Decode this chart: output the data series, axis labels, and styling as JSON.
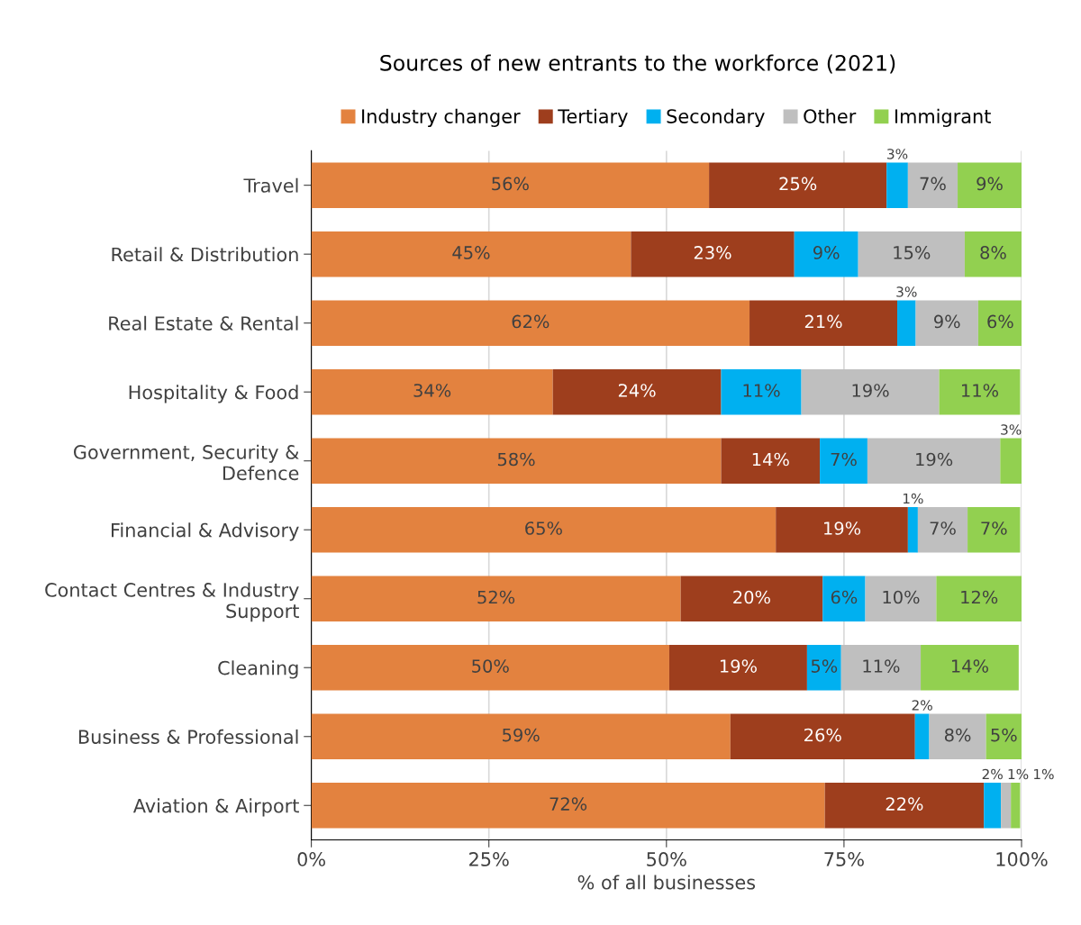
{
  "chart_data": {
    "type": "bar",
    "orientation": "horizontal",
    "stacked": true,
    "title": "Sources of new entrants to the workforce (2021)",
    "xlabel": "% of all businesses",
    "categories": [
      "Travel",
      "Retail & Distribution",
      "Real Estate & Rental",
      "Hospitality & Food",
      "Government, Security &\nDefence",
      "Financial & Advisory",
      "Contact Centres & Industry\nSupport",
      "Cleaning",
      "Business & Professional",
      "Aviation & Airport"
    ],
    "series": [
      {
        "name": "Industry changer",
        "color": "#e3823f",
        "values": [
          56,
          45,
          61.7,
          34,
          57.7,
          65.4,
          52,
          50.4,
          59,
          72.3
        ],
        "value_labels": [
          "56%",
          "45%",
          "62%",
          "34%",
          "58%",
          "65%",
          "52%",
          "50%",
          "59%",
          "72%"
        ]
      },
      {
        "name": "Tertiary",
        "color": "#9e3e1d",
        "values": [
          25,
          23,
          20.8,
          23.7,
          13.9,
          18.6,
          20,
          19.4,
          26,
          22.4
        ],
        "value_labels": [
          "25%",
          "23%",
          "21%",
          "24%",
          "14%",
          "19%",
          "20%",
          "19%",
          "26%",
          "22%"
        ]
      },
      {
        "name": "Secondary",
        "color": "#00b0f0",
        "values": [
          3,
          9,
          2.6,
          11.3,
          6.7,
          1.4,
          6,
          4.8,
          2,
          2.4
        ],
        "value_labels": [
          "3%",
          "9%",
          "3%",
          "11%",
          "7%",
          "1%",
          "6%",
          "5%",
          "2%",
          "2%"
        ]
      },
      {
        "name": "Other",
        "color": "#bfbfbf",
        "values": [
          7,
          15,
          8.8,
          19.4,
          18.7,
          7,
          10,
          11.2,
          8,
          1.4
        ],
        "value_labels": [
          "7%",
          "15%",
          "9%",
          "19%",
          "19%",
          "7%",
          "10%",
          "11%",
          "8%",
          "1%"
        ]
      },
      {
        "name": "Immigrant",
        "color": "#92d050",
        "values": [
          9,
          8,
          6.2,
          11.4,
          3,
          7.4,
          12,
          13.8,
          5,
          1.3
        ],
        "value_labels": [
          "9%",
          "8%",
          "6%",
          "11%",
          "3%",
          "7%",
          "12%",
          "14%",
          "5%",
          "1%"
        ]
      }
    ],
    "xlim": [
      0,
      100
    ],
    "xticks": [
      {
        "value": 0,
        "label": "0%"
      },
      {
        "value": 25,
        "label": "25%"
      },
      {
        "value": 50,
        "label": "50%"
      },
      {
        "value": 75,
        "label": "75%"
      },
      {
        "value": 100,
        "label": "100%"
      }
    ],
    "grid": "x",
    "legend": "top"
  }
}
